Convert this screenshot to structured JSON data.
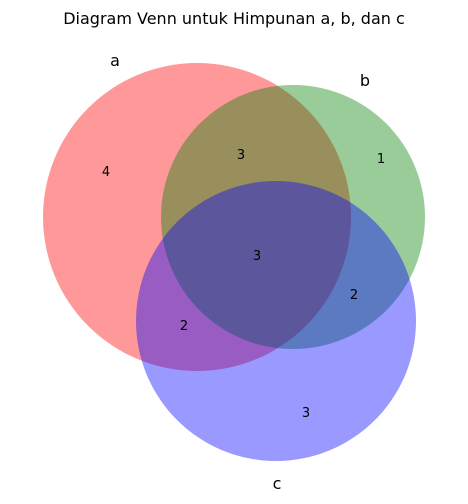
{
  "title": "Diagram Venn untuk Himpunan a, b, dan c",
  "sets": {
    "a": {
      "label": "a",
      "color": "#ff0000"
    },
    "b": {
      "label": "b",
      "color": "#008000"
    },
    "c": {
      "label": "c",
      "color": "#0000ff"
    }
  },
  "regions": {
    "a_only": "4",
    "b_only": "1",
    "c_only": "3",
    "ab_only": "3",
    "ac_only": "2",
    "bc_only": "2",
    "abc": "3"
  },
  "fill_opacity": 0.4
}
